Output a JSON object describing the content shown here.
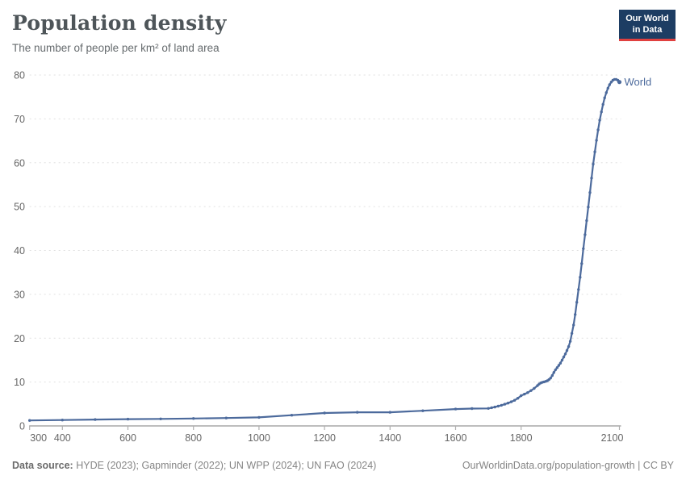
{
  "header": {
    "title": "Population density",
    "subtitle": "The number of people per km² of land area"
  },
  "logo": {
    "line1": "Our World",
    "line2": "in Data",
    "bg_color": "#1d3d63",
    "accent_color": "#e0403f"
  },
  "chart_data": {
    "type": "line",
    "title": "Population density",
    "subtitle": "The number of people per km² of land area",
    "xlabel": "",
    "ylabel": "",
    "xlim": [
      300,
      2100
    ],
    "ylim": [
      0,
      80
    ],
    "grid": "horizontal-dashed",
    "legend_position": "end-of-line-label",
    "colors": {
      "line": "#4c6a9c",
      "entity_label": "#4c6a9c",
      "grid": "#e0e0e0",
      "axis": "#969696",
      "tick": "#b0b0b0",
      "tick_label": "#666666"
    },
    "x_ticks": [
      {
        "label": "300",
        "year": 300,
        "dx": 11
      },
      {
        "label": "400",
        "year": 400,
        "dx": 0
      },
      {
        "label": "600",
        "year": 600,
        "dx": 0
      },
      {
        "label": "800",
        "year": 800,
        "dx": 0
      },
      {
        "label": "1000",
        "year": 1000,
        "dx": 0
      },
      {
        "label": "1200",
        "year": 1200,
        "dx": 0
      },
      {
        "label": "1400",
        "year": 1400,
        "dx": 0
      },
      {
        "label": "1600",
        "year": 1600,
        "dx": 0
      },
      {
        "label": "1800",
        "year": 1800,
        "dx": 0
      },
      {
        "label": "2100",
        "year": 2100,
        "dx": -9
      }
    ],
    "y_ticks": [
      0,
      10,
      20,
      30,
      40,
      50,
      60,
      70,
      80
    ],
    "series": [
      {
        "name": "World",
        "color": "#4c6a9c",
        "points": [
          [
            300,
            1.25
          ],
          [
            400,
            1.35
          ],
          [
            500,
            1.45
          ],
          [
            600,
            1.55
          ],
          [
            700,
            1.6
          ],
          [
            800,
            1.7
          ],
          [
            900,
            1.8
          ],
          [
            1000,
            1.95
          ],
          [
            1100,
            2.45
          ],
          [
            1200,
            2.95
          ],
          [
            1300,
            3.1
          ],
          [
            1400,
            3.1
          ],
          [
            1500,
            3.45
          ],
          [
            1600,
            3.85
          ],
          [
            1650,
            3.95
          ],
          [
            1700,
            4.0
          ],
          [
            1710,
            4.15
          ],
          [
            1720,
            4.3
          ],
          [
            1730,
            4.5
          ],
          [
            1740,
            4.7
          ],
          [
            1750,
            4.95
          ],
          [
            1760,
            5.2
          ],
          [
            1770,
            5.5
          ],
          [
            1780,
            5.85
          ],
          [
            1790,
            6.3
          ],
          [
            1800,
            6.9
          ],
          [
            1810,
            7.25
          ],
          [
            1820,
            7.6
          ],
          [
            1830,
            8.05
          ],
          [
            1840,
            8.55
          ],
          [
            1850,
            9.2
          ],
          [
            1855,
            9.55
          ],
          [
            1860,
            9.8
          ],
          [
            1865,
            9.95
          ],
          [
            1870,
            10.05
          ],
          [
            1875,
            10.15
          ],
          [
            1880,
            10.3
          ],
          [
            1885,
            10.55
          ],
          [
            1890,
            10.9
          ],
          [
            1895,
            11.5
          ],
          [
            1900,
            12.2
          ],
          [
            1905,
            12.8
          ],
          [
            1910,
            13.3
          ],
          [
            1915,
            13.8
          ],
          [
            1920,
            14.3
          ],
          [
            1925,
            15.0
          ],
          [
            1930,
            15.7
          ],
          [
            1935,
            16.4
          ],
          [
            1940,
            17.2
          ],
          [
            1945,
            18.1
          ],
          [
            1950,
            19.3
          ],
          [
            1955,
            21.1
          ],
          [
            1960,
            23.0
          ],
          [
            1965,
            25.4
          ],
          [
            1970,
            28.2
          ],
          [
            1975,
            31.1
          ],
          [
            1980,
            33.9
          ],
          [
            1985,
            37.0
          ],
          [
            1990,
            40.4
          ],
          [
            1995,
            43.6
          ],
          [
            2000,
            46.8
          ],
          [
            2005,
            49.9
          ],
          [
            2010,
            53.2
          ],
          [
            2015,
            56.5
          ],
          [
            2020,
            59.7
          ],
          [
            2025,
            62.5
          ],
          [
            2030,
            65.1
          ],
          [
            2035,
            67.5
          ],
          [
            2040,
            69.7
          ],
          [
            2045,
            71.6
          ],
          [
            2050,
            73.3
          ],
          [
            2055,
            74.8
          ],
          [
            2060,
            76.0
          ],
          [
            2065,
            77.0
          ],
          [
            2070,
            77.8
          ],
          [
            2075,
            78.4
          ],
          [
            2080,
            78.8
          ],
          [
            2085,
            79.0
          ],
          [
            2090,
            79.0
          ],
          [
            2095,
            78.8
          ],
          [
            2100,
            78.4
          ]
        ]
      }
    ]
  },
  "footer": {
    "source_label": "Data source:",
    "source_text": " HYDE (2023); Gapminder (2022); UN WPP (2024); UN FAO (2024)",
    "link_text": "OurWorldinData.org/population-growth | CC BY"
  }
}
